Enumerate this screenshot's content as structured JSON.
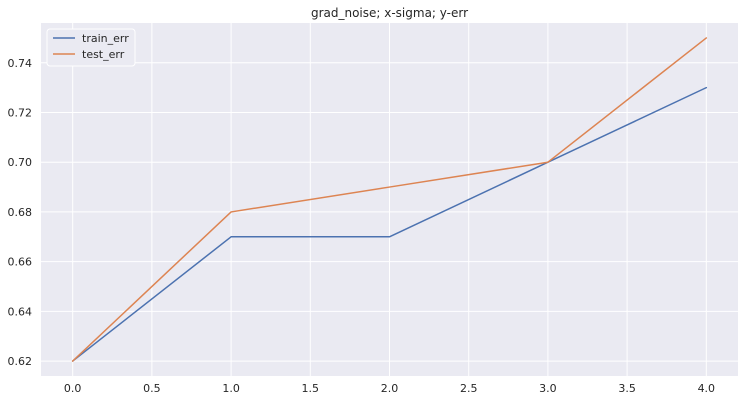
{
  "chart_data": {
    "type": "line",
    "title": "grad_noise; x-sigma; y-err",
    "xlabel": "",
    "ylabel": "",
    "x": [
      0,
      1,
      2,
      3,
      4
    ],
    "series": [
      {
        "name": "train_err",
        "values": [
          0.62,
          0.67,
          0.67,
          0.7,
          0.73
        ],
        "color": "#4c72b0"
      },
      {
        "name": "test_err",
        "values": [
          0.62,
          0.68,
          0.69,
          0.7,
          0.75
        ],
        "color": "#dd8452"
      }
    ],
    "xlim": [
      -0.2,
      4.2
    ],
    "ylim": [
      0.614,
      0.756
    ],
    "xticks": [
      0.0,
      0.5,
      1.0,
      1.5,
      2.0,
      2.5,
      3.0,
      3.5,
      4.0
    ],
    "xtick_labels": [
      "0.0",
      "0.5",
      "1.0",
      "1.5",
      "2.0",
      "2.5",
      "3.0",
      "3.5",
      "4.0"
    ],
    "yticks": [
      0.62,
      0.64,
      0.66,
      0.68,
      0.7,
      0.72,
      0.74
    ],
    "ytick_labels": [
      "0.62",
      "0.64",
      "0.66",
      "0.68",
      "0.70",
      "0.72",
      "0.74"
    ],
    "grid": true,
    "legend": "top-left",
    "background_color": "#eaeaf2",
    "grid_color": "#ffffff"
  }
}
